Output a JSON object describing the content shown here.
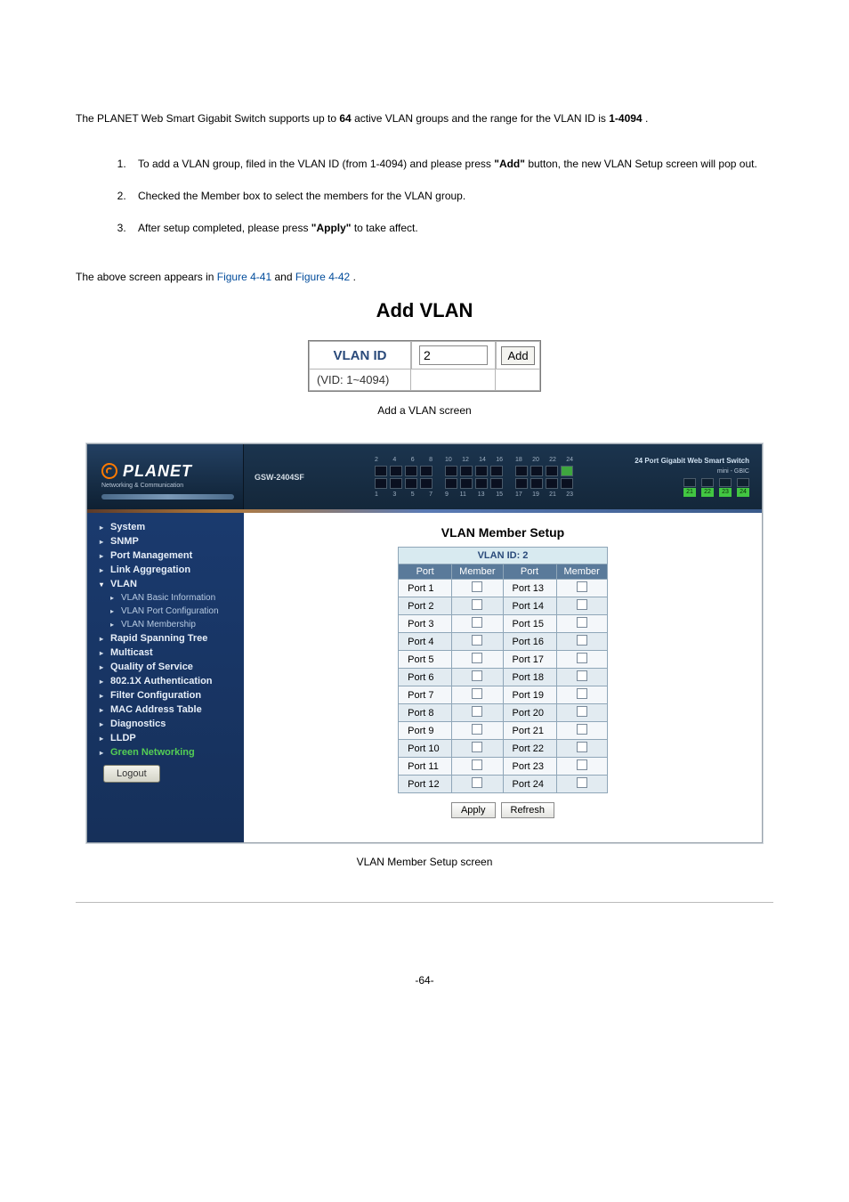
{
  "intro": {
    "pre": "The PLANET Web Smart Gigabit Switch supports up to ",
    "limit_groups": "64",
    "mid": " active VLAN groups and the range for the VLAN ID is ",
    "range": "1-4094",
    "end": "."
  },
  "steps": {
    "s1a": "To add a VLAN group, filed in the ",
    "s1_vid": "VLAN ID",
    "s1b": " (from 1-4094) and please press ",
    "s1_btn": "\"Add\"",
    "s1c": " button, the new VLAN Setup screen will pop out.",
    "s2": "Checked the Member box to select the members for the VLAN group.",
    "s3a": "After setup completed, please press ",
    "s3_btn": "\"Apply\"",
    "s3b": " to take affect."
  },
  "figline": {
    "a": "The above screen appears in ",
    "f1": "Figure 4-41",
    "and": " and ",
    "f2": "Figure 4-42",
    "end": "."
  },
  "addvlan": {
    "title": "Add VLAN",
    "label": "VLAN ID",
    "input_value": "2",
    "button": "Add",
    "range": "(VID: 1~4094)"
  },
  "caption1": "Add a VLAN screen",
  "caption2": "VLAN Member Setup screen",
  "brand": {
    "name": "PLANET",
    "sub": "Networking & Communication"
  },
  "model": "GSW-2404SF",
  "right_title": "24 Port Gigabit Web Smart Switch",
  "gbic_label": "mini - GBIC",
  "gbic_nums": [
    "21",
    "22",
    "23",
    "24"
  ],
  "port_top_nums": [
    "2",
    "4",
    "6",
    "8",
    "10",
    "12",
    "14",
    "16",
    "18",
    "20",
    "22",
    "24"
  ],
  "port_bot_nums": [
    "1",
    "3",
    "5",
    "7",
    "9",
    "11",
    "13",
    "15",
    "17",
    "19",
    "21",
    "23"
  ],
  "sidebar": [
    {
      "label": "System",
      "bold": true
    },
    {
      "label": "SNMP",
      "bold": true
    },
    {
      "label": "Port Management",
      "bold": true
    },
    {
      "label": "Link Aggregation",
      "bold": true
    },
    {
      "label": "VLAN",
      "bold": true,
      "open": true,
      "subs": [
        "VLAN Basic Information",
        "VLAN Port Configuration",
        "VLAN Membership"
      ]
    },
    {
      "label": "Rapid Spanning Tree",
      "bold": true
    },
    {
      "label": "Multicast",
      "bold": true
    },
    {
      "label": "Quality of Service",
      "bold": true
    },
    {
      "label": "802.1X Authentication",
      "bold": true
    },
    {
      "label": "Filter Configuration",
      "bold": true
    },
    {
      "label": "MAC Address Table",
      "bold": true
    },
    {
      "label": "Diagnostics",
      "bold": true
    },
    {
      "label": "LLDP",
      "bold": true
    },
    {
      "label": "Green Networking",
      "bold": true,
      "green": true
    }
  ],
  "logout": "Logout",
  "setup": {
    "title": "VLAN Member Setup",
    "caption": "VLAN ID: 2",
    "cols": [
      "Port",
      "Member",
      "Port",
      "Member"
    ],
    "rows": [
      [
        "Port 1",
        "Port 13"
      ],
      [
        "Port 2",
        "Port 14"
      ],
      [
        "Port 3",
        "Port 15"
      ],
      [
        "Port 4",
        "Port 16"
      ],
      [
        "Port 5",
        "Port 17"
      ],
      [
        "Port 6",
        "Port 18"
      ],
      [
        "Port 7",
        "Port 19"
      ],
      [
        "Port 8",
        "Port 20"
      ],
      [
        "Port 9",
        "Port 21"
      ],
      [
        "Port 10",
        "Port 22"
      ],
      [
        "Port 11",
        "Port 23"
      ],
      [
        "Port 12",
        "Port 24"
      ]
    ],
    "apply": "Apply",
    "refresh": "Refresh"
  },
  "page_num": "-64-",
  "colors": {
    "link": "#004b9b",
    "header_bg_top": "#1b344e",
    "sidebar_bg": "#1a3a6e",
    "table_header_bg": "#5a7a9a",
    "row_even": "#e2ebf1",
    "row_odd": "#f4f7fa",
    "brand_orange": "#ff7a00",
    "green_port": "#42c642"
  }
}
